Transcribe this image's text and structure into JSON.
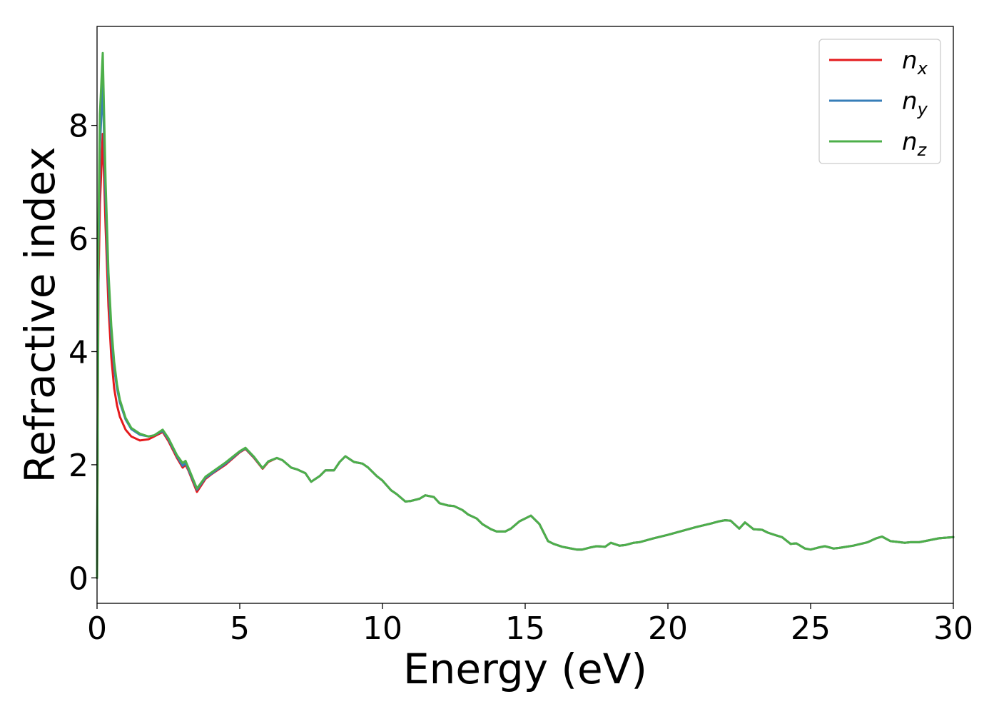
{
  "chart_data": {
    "type": "line",
    "title": "",
    "xlabel": "Energy (eV)",
    "ylabel": "Refractive index",
    "xlim": [
      0,
      30
    ],
    "ylim": [
      -0.45,
      9.75
    ],
    "xticks": [
      0,
      5,
      10,
      15,
      20,
      25,
      30
    ],
    "yticks": [
      0,
      2,
      4,
      6,
      8
    ],
    "grid": false,
    "legend_position": "top-right",
    "series": [
      {
        "name": "n_x",
        "name_base": "n",
        "name_sub": "x",
        "color": "#e41a1c",
        "x": [
          0,
          0.05,
          0.1,
          0.2,
          0.3,
          0.4,
          0.5,
          0.6,
          0.7,
          0.8,
          1.0,
          1.2,
          1.5,
          1.8,
          2.0,
          2.3,
          2.5,
          2.8,
          3.0,
          3.1,
          3.2,
          3.5,
          3.8,
          4.0,
          4.5,
          5.0,
          5.2,
          5.5,
          5.8,
          6.0,
          6.3,
          6.5,
          6.8,
          7.0,
          7.3,
          7.5,
          7.8,
          8.0,
          8.3,
          8.5,
          8.7,
          9.0,
          9.3,
          9.5,
          9.8,
          10.0,
          10.3,
          10.5,
          10.8,
          11.0,
          11.3,
          11.5,
          11.8,
          12.0,
          12.3,
          12.5,
          12.8,
          13.0,
          13.3,
          13.5,
          13.8,
          14.0,
          14.3,
          14.5,
          14.8,
          15.0,
          15.2,
          15.5,
          15.8,
          16.0,
          16.3,
          16.5,
          16.8,
          17.0,
          17.3,
          17.5,
          17.8,
          18.0,
          18.3,
          18.5,
          18.8,
          19.0,
          19.5,
          20.0,
          20.5,
          21.0,
          21.5,
          21.8,
          22.0,
          22.2,
          22.5,
          22.7,
          23.0,
          23.3,
          23.5,
          23.8,
          24.0,
          24.3,
          24.5,
          24.8,
          25.0,
          25.3,
          25.5,
          25.8,
          26.0,
          26.5,
          27.0,
          27.3,
          27.5,
          27.8,
          28.0,
          28.3,
          28.5,
          28.8,
          29.0,
          29.5,
          30.0
        ],
        "values": [
          0.0,
          5.2,
          6.6,
          7.85,
          6.2,
          4.8,
          3.9,
          3.35,
          3.05,
          2.85,
          2.62,
          2.5,
          2.43,
          2.45,
          2.5,
          2.58,
          2.42,
          2.12,
          1.95,
          2.0,
          1.9,
          1.52,
          1.75,
          1.83,
          2.0,
          2.22,
          2.28,
          2.12,
          1.93,
          2.05,
          2.12,
          2.08,
          1.95,
          1.92,
          1.85,
          1.7,
          1.8,
          1.9,
          1.9,
          2.05,
          2.15,
          2.05,
          2.02,
          1.95,
          1.8,
          1.72,
          1.55,
          1.48,
          1.35,
          1.36,
          1.4,
          1.46,
          1.43,
          1.32,
          1.28,
          1.27,
          1.2,
          1.12,
          1.05,
          0.95,
          0.86,
          0.82,
          0.82,
          0.87,
          1.0,
          1.05,
          1.1,
          0.95,
          0.65,
          0.6,
          0.55,
          0.53,
          0.5,
          0.5,
          0.54,
          0.56,
          0.55,
          0.62,
          0.57,
          0.58,
          0.62,
          0.63,
          0.7,
          0.76,
          0.83,
          0.9,
          0.96,
          1.0,
          1.02,
          1.01,
          0.87,
          0.98,
          0.86,
          0.85,
          0.8,
          0.75,
          0.72,
          0.6,
          0.61,
          0.52,
          0.5,
          0.54,
          0.56,
          0.52,
          0.53,
          0.57,
          0.63,
          0.7,
          0.73,
          0.65,
          0.64,
          0.62,
          0.63,
          0.63,
          0.65,
          0.7,
          0.72
        ]
      },
      {
        "name": "n_y",
        "name_base": "n",
        "name_sub": "y",
        "color": "#377eb8",
        "x": [
          0,
          0.05,
          0.1,
          0.2,
          0.3,
          0.4,
          0.5,
          0.6,
          0.7,
          0.8,
          1.0,
          1.2,
          1.5,
          1.8,
          2.0,
          2.3,
          2.5,
          2.8,
          3.0,
          3.1,
          3.2,
          3.5,
          3.8,
          4.0,
          4.5,
          5.0,
          5.2,
          5.5,
          5.8,
          6.0,
          6.3,
          6.5,
          6.8,
          7.0,
          7.3,
          7.5,
          7.8,
          8.0,
          8.3,
          8.5,
          8.7,
          9.0,
          9.3,
          9.5,
          9.8,
          10.0,
          10.3,
          10.5,
          10.8,
          11.0,
          11.3,
          11.5,
          11.8,
          12.0,
          12.3,
          12.5,
          12.8,
          13.0,
          13.3,
          13.5,
          13.8,
          14.0,
          14.3,
          14.5,
          14.8,
          15.0,
          15.2,
          15.5,
          15.8,
          16.0,
          16.3,
          16.5,
          16.8,
          17.0,
          17.3,
          17.5,
          17.8,
          18.0,
          18.3,
          18.5,
          18.8,
          19.0,
          19.5,
          20.0,
          20.5,
          21.0,
          21.5,
          21.8,
          22.0,
          22.2,
          22.5,
          22.7,
          23.0,
          23.3,
          23.5,
          23.8,
          24.0,
          24.3,
          24.5,
          24.8,
          25.0,
          25.3,
          25.5,
          25.8,
          26.0,
          26.5,
          27.0,
          27.3,
          27.5,
          27.8,
          28.0,
          28.3,
          28.5,
          28.8,
          29.0,
          29.5,
          30.0
        ],
        "values": [
          0.0,
          5.8,
          7.6,
          8.75,
          6.7,
          5.2,
          4.3,
          3.7,
          3.35,
          3.1,
          2.8,
          2.63,
          2.53,
          2.5,
          2.52,
          2.6,
          2.45,
          2.15,
          1.98,
          2.03,
          1.92,
          1.56,
          1.77,
          1.84,
          2.02,
          2.23,
          2.29,
          2.13,
          1.94,
          2.06,
          2.12,
          2.08,
          1.95,
          1.92,
          1.85,
          1.7,
          1.8,
          1.9,
          1.9,
          2.05,
          2.15,
          2.05,
          2.02,
          1.95,
          1.8,
          1.72,
          1.55,
          1.48,
          1.35,
          1.36,
          1.4,
          1.46,
          1.43,
          1.32,
          1.28,
          1.27,
          1.2,
          1.12,
          1.05,
          0.95,
          0.86,
          0.82,
          0.82,
          0.87,
          1.0,
          1.05,
          1.1,
          0.95,
          0.65,
          0.6,
          0.55,
          0.53,
          0.5,
          0.5,
          0.54,
          0.56,
          0.55,
          0.62,
          0.57,
          0.58,
          0.62,
          0.63,
          0.7,
          0.76,
          0.83,
          0.9,
          0.96,
          1.0,
          1.02,
          1.01,
          0.87,
          0.98,
          0.86,
          0.85,
          0.8,
          0.75,
          0.72,
          0.6,
          0.61,
          0.52,
          0.5,
          0.54,
          0.56,
          0.52,
          0.53,
          0.57,
          0.63,
          0.7,
          0.73,
          0.65,
          0.64,
          0.62,
          0.63,
          0.63,
          0.65,
          0.7,
          0.72
        ]
      },
      {
        "name": "n_z",
        "name_base": "n",
        "name_sub": "z",
        "color": "#4daf4a",
        "x": [
          0,
          0.05,
          0.1,
          0.2,
          0.3,
          0.4,
          0.5,
          0.6,
          0.7,
          0.8,
          1.0,
          1.2,
          1.5,
          1.8,
          2.0,
          2.3,
          2.5,
          2.8,
          3.0,
          3.1,
          3.2,
          3.5,
          3.8,
          4.0,
          4.5,
          5.0,
          5.2,
          5.5,
          5.8,
          6.0,
          6.3,
          6.5,
          6.8,
          7.0,
          7.3,
          7.5,
          7.8,
          8.0,
          8.3,
          8.5,
          8.7,
          9.0,
          9.3,
          9.5,
          9.8,
          10.0,
          10.3,
          10.5,
          10.8,
          11.0,
          11.3,
          11.5,
          11.8,
          12.0,
          12.3,
          12.5,
          12.8,
          13.0,
          13.3,
          13.5,
          13.8,
          14.0,
          14.3,
          14.5,
          14.8,
          15.0,
          15.2,
          15.5,
          15.8,
          16.0,
          16.3,
          16.5,
          16.8,
          17.0,
          17.3,
          17.5,
          17.8,
          18.0,
          18.3,
          18.5,
          18.8,
          19.0,
          19.5,
          20.0,
          20.5,
          21.0,
          21.5,
          21.8,
          22.0,
          22.2,
          22.5,
          22.7,
          23.0,
          23.3,
          23.5,
          23.8,
          24.0,
          24.3,
          24.5,
          24.8,
          25.0,
          25.3,
          25.5,
          25.8,
          26.0,
          26.5,
          27.0,
          27.3,
          27.5,
          27.8,
          28.0,
          28.3,
          28.5,
          28.8,
          29.0,
          29.5,
          30.0
        ],
        "values": [
          0.0,
          6.2,
          8.2,
          9.28,
          7.0,
          5.4,
          4.45,
          3.82,
          3.42,
          3.15,
          2.83,
          2.65,
          2.55,
          2.5,
          2.52,
          2.62,
          2.47,
          2.17,
          2.03,
          2.07,
          1.95,
          1.58,
          1.79,
          1.86,
          2.04,
          2.24,
          2.3,
          2.14,
          1.94,
          2.06,
          2.12,
          2.08,
          1.95,
          1.92,
          1.85,
          1.7,
          1.8,
          1.9,
          1.9,
          2.05,
          2.15,
          2.05,
          2.02,
          1.95,
          1.8,
          1.72,
          1.55,
          1.48,
          1.35,
          1.36,
          1.4,
          1.46,
          1.43,
          1.32,
          1.28,
          1.27,
          1.2,
          1.12,
          1.05,
          0.95,
          0.86,
          0.82,
          0.82,
          0.87,
          1.0,
          1.05,
          1.1,
          0.95,
          0.65,
          0.6,
          0.55,
          0.53,
          0.5,
          0.5,
          0.54,
          0.56,
          0.55,
          0.62,
          0.57,
          0.58,
          0.62,
          0.63,
          0.7,
          0.76,
          0.83,
          0.9,
          0.96,
          1.0,
          1.02,
          1.01,
          0.87,
          0.98,
          0.86,
          0.85,
          0.8,
          0.75,
          0.72,
          0.6,
          0.61,
          0.52,
          0.5,
          0.54,
          0.56,
          0.52,
          0.53,
          0.57,
          0.63,
          0.7,
          0.73,
          0.65,
          0.64,
          0.62,
          0.63,
          0.63,
          0.65,
          0.7,
          0.72
        ]
      }
    ]
  }
}
